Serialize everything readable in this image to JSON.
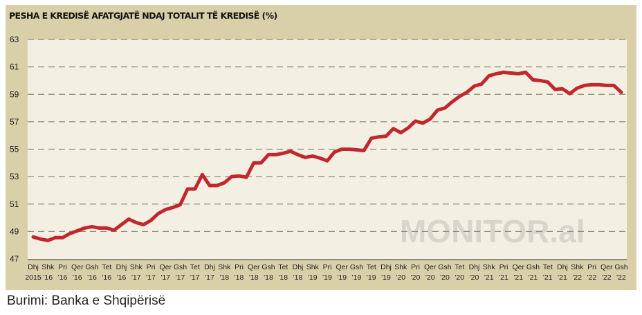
{
  "chart_data": {
    "type": "line",
    "title": "PESHA E KREDISË AFATGJATË NDAJ TOTALIT TË KREDISË (%)",
    "xlabel": "",
    "ylabel": "",
    "ylim": [
      47,
      63
    ],
    "yticks": [
      47,
      49,
      51,
      53,
      55,
      57,
      59,
      61,
      63
    ],
    "grid": true,
    "xtick_labels": [
      [
        "Dhj",
        "2015"
      ],
      [
        "Shk",
        "'16"
      ],
      [
        "Pri",
        "'16"
      ],
      [
        "Qer",
        "'16"
      ],
      [
        "Gsh",
        "'16"
      ],
      [
        "Tet",
        "'16"
      ],
      [
        "Dhj",
        "'16"
      ],
      [
        "Shk",
        "'17"
      ],
      [
        "Pri",
        "'17"
      ],
      [
        "Qer",
        "'17"
      ],
      [
        "Gsh",
        "'17"
      ],
      [
        "Tet",
        "'17"
      ],
      [
        "Dhj",
        "'17"
      ],
      [
        "Shk",
        "'18"
      ],
      [
        "Pri",
        "'18"
      ],
      [
        "Qer",
        "'18"
      ],
      [
        "Gsh",
        "'18"
      ],
      [
        "Tet",
        "'18"
      ],
      [
        "Dhj",
        "'18"
      ],
      [
        "Shk",
        "'19"
      ],
      [
        "Pri",
        "'19"
      ],
      [
        "Qer",
        "'19"
      ],
      [
        "Gsh",
        "'19"
      ],
      [
        "Tet",
        "'19"
      ],
      [
        "Dhj",
        "'19"
      ],
      [
        "Shk",
        "'20"
      ],
      [
        "Pri",
        "'20"
      ],
      [
        "Qer",
        "'20"
      ],
      [
        "Gsh",
        "'20"
      ],
      [
        "Tet",
        "'20"
      ],
      [
        "Dhj",
        "'20"
      ],
      [
        "Shk",
        "'21"
      ],
      [
        "Pri",
        "'21"
      ],
      [
        "Qer",
        "'21"
      ],
      [
        "Gsh",
        "'21"
      ],
      [
        "Tet",
        "'21"
      ],
      [
        "Dhj",
        "'21"
      ],
      [
        "Shk",
        "'22"
      ],
      [
        "Pri",
        "'22"
      ],
      [
        "Qer",
        "'22"
      ],
      [
        "Gsh",
        "'22"
      ]
    ],
    "series": [
      {
        "name": "Pesha e kredisë afatgjatë (%)",
        "color": "#c1272d",
        "frequency": "monthly, Dec 2015 – Aug 2022",
        "values": [
          48.6,
          48.45,
          48.35,
          48.55,
          48.55,
          48.85,
          49.05,
          49.25,
          49.35,
          49.25,
          49.25,
          49.1,
          49.5,
          49.9,
          49.65,
          49.5,
          49.8,
          50.3,
          50.6,
          50.75,
          50.95,
          52.1,
          52.1,
          53.15,
          52.35,
          52.35,
          52.55,
          53.0,
          53.05,
          52.95,
          54.0,
          54.0,
          54.6,
          54.6,
          54.7,
          54.85,
          54.6,
          54.4,
          54.5,
          54.35,
          54.15,
          54.8,
          55.0,
          55.0,
          54.95,
          54.9,
          55.8,
          55.9,
          55.95,
          56.5,
          56.2,
          56.55,
          57.05,
          56.9,
          57.2,
          57.85,
          58.0,
          58.45,
          58.85,
          59.15,
          59.6,
          59.75,
          60.35,
          60.5,
          60.6,
          60.55,
          60.5,
          60.6,
          60.05,
          60.0,
          59.9,
          59.35,
          59.4,
          59.05,
          59.45,
          59.65,
          59.7,
          59.7,
          59.65,
          59.65,
          59.15
        ]
      }
    ],
    "watermark": "MONITOR.al"
  },
  "source": "Burimi: Banka e Shqipërisë",
  "colors": {
    "panel": "#d9d0a9",
    "plot": "#f3f0e3",
    "line": "#c1272d",
    "grid": "#8a877c"
  }
}
